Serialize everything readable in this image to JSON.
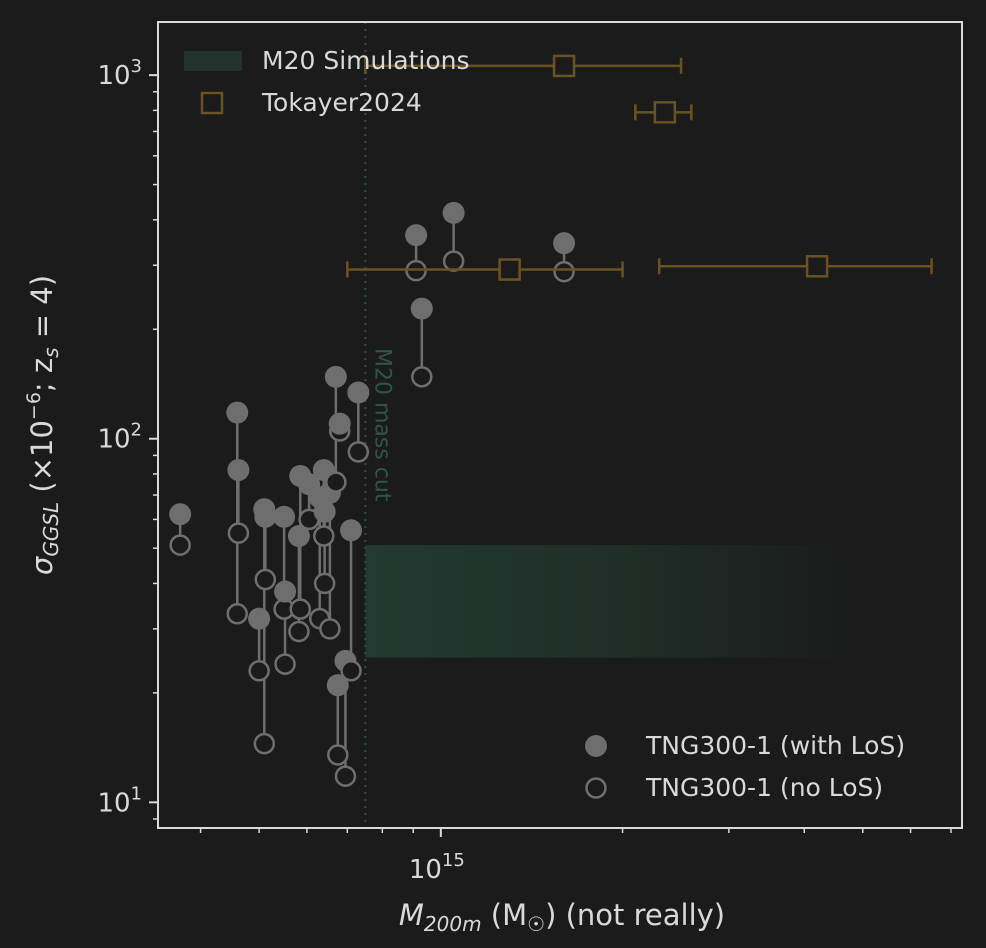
{
  "chart_data": {
    "type": "scatter",
    "xlabel_var": "M",
    "xlabel_sub": "200m",
    "xlabel_unit": " (M",
    "xlabel_unit_sub": "☉",
    "xlabel_tail": ") (not really)",
    "ylabel_var": "σ",
    "ylabel_sub": "GGSL",
    "ylabel_rest1": " (×10",
    "ylabel_exp": "−6",
    "ylabel_rest2": "; z",
    "ylabel_rest2_sub": "s",
    "ylabel_rest3": " = 4)",
    "x_scale": "log",
    "y_scale": "log",
    "xlim": [
      340000000000000.0,
      7300000000000000.0
    ],
    "ylim": [
      8.5,
      1400
    ],
    "y_ticks": [
      {
        "value": 10,
        "base": "10",
        "exp": "1"
      },
      {
        "value": 100,
        "base": "10",
        "exp": "2"
      },
      {
        "value": 1000,
        "base": "10",
        "exp": "3"
      }
    ],
    "x_ticks": [
      {
        "value": 1000000000000000.0,
        "base": "10",
        "exp": "15"
      }
    ],
    "grid": false,
    "colors": {
      "background": "#1b1b1b",
      "axes": "#d9d9d9",
      "tng": "#6e6e6e",
      "tokayer": "#6a5322",
      "m20": "#22332c",
      "m20_line": "#2c5040"
    },
    "m20_region": {
      "x_from": 750000000000000.0,
      "x_to": 4900000000000000.0,
      "y_from": 25,
      "y_to": 51
    },
    "m20_mass_cut": {
      "x": 750000000000000.0,
      "label": "M20 mass cut"
    },
    "tokayer2024": [
      {
        "x": 1600000000000000.0,
        "y": 1060,
        "xerr_lo": 750000000000000.0,
        "xerr_hi": 2500000000000000.0
      },
      {
        "x": 2350000000000000.0,
        "y": 790,
        "xerr_lo": 2100000000000000.0,
        "xerr_hi": 2600000000000000.0
      },
      {
        "x": 1300000000000000.0,
        "y": 292,
        "xerr_lo": 700000000000000.0,
        "xerr_hi": 2000000000000000.0
      },
      {
        "x": 4200000000000000.0,
        "y": 298,
        "xerr_lo": 2300000000000000.0,
        "xerr_hi": 6500000000000000.0
      }
    ],
    "tng300_pairs": [
      {
        "x": 370000000000000.0,
        "with_los": 62,
        "no_los": 51
      },
      {
        "x": 460000000000000.0,
        "with_los": 118,
        "no_los": 33
      },
      {
        "x": 462000000000000.0,
        "with_los": 82,
        "no_los": 55
      },
      {
        "x": 500000000000000.0,
        "with_los": 32,
        "no_los": 23
      },
      {
        "x": 510000000000000.0,
        "with_los": 64,
        "no_los": 14.5
      },
      {
        "x": 512000000000000.0,
        "with_los": 61,
        "no_los": 41
      },
      {
        "x": 550000000000000.0,
        "with_los": 61,
        "no_los": 34
      },
      {
        "x": 552000000000000.0,
        "with_los": 38,
        "no_los": 24
      },
      {
        "x": 585000000000000.0,
        "with_los": 79,
        "no_los": 34
      },
      {
        "x": 582000000000000.0,
        "with_los": 54,
        "no_los": 29.5
      },
      {
        "x": 605000000000000.0,
        "with_los": 75,
        "no_los": 60
      },
      {
        "x": 630000000000000.0,
        "with_los": 69,
        "no_los": 32
      },
      {
        "x": 640000000000000.0,
        "with_los": 82,
        "no_los": 54
      },
      {
        "x": 642000000000000.0,
        "with_los": 63,
        "no_los": 40
      },
      {
        "x": 655000000000000.0,
        "with_los": 71,
        "no_los": 30
      },
      {
        "x": 670000000000000.0,
        "with_los": 148,
        "no_los": 76
      },
      {
        "x": 680000000000000.0,
        "with_los": 110,
        "no_los": 105
      },
      {
        "x": 675000000000000.0,
        "with_los": 21,
        "no_los": 13.5
      },
      {
        "x": 695000000000000.0,
        "with_los": 24.5,
        "no_los": 11.8
      },
      {
        "x": 710000000000000.0,
        "with_los": 56,
        "no_los": 23
      },
      {
        "x": 730000000000000.0,
        "with_los": 134,
        "no_los": 92
      },
      {
        "x": 910000000000000.0,
        "with_los": 363,
        "no_los": 290
      },
      {
        "x": 930000000000000.0,
        "with_los": 228,
        "no_los": 148
      },
      {
        "x": 1050000000000000.0,
        "with_los": 418,
        "no_los": 308
      },
      {
        "x": 1600000000000000.0,
        "with_los": 345,
        "no_los": 288
      }
    ],
    "legend_top": [
      {
        "label": "M20 Simulations",
        "marker": "patch"
      },
      {
        "label": "Tokayer2024",
        "marker": "open-square"
      }
    ],
    "legend_bottom": [
      {
        "label": "TNG300-1 (with LoS)",
        "marker": "filled-circle"
      },
      {
        "label": "TNG300-1 (no LoS)",
        "marker": "open-circle"
      }
    ]
  }
}
